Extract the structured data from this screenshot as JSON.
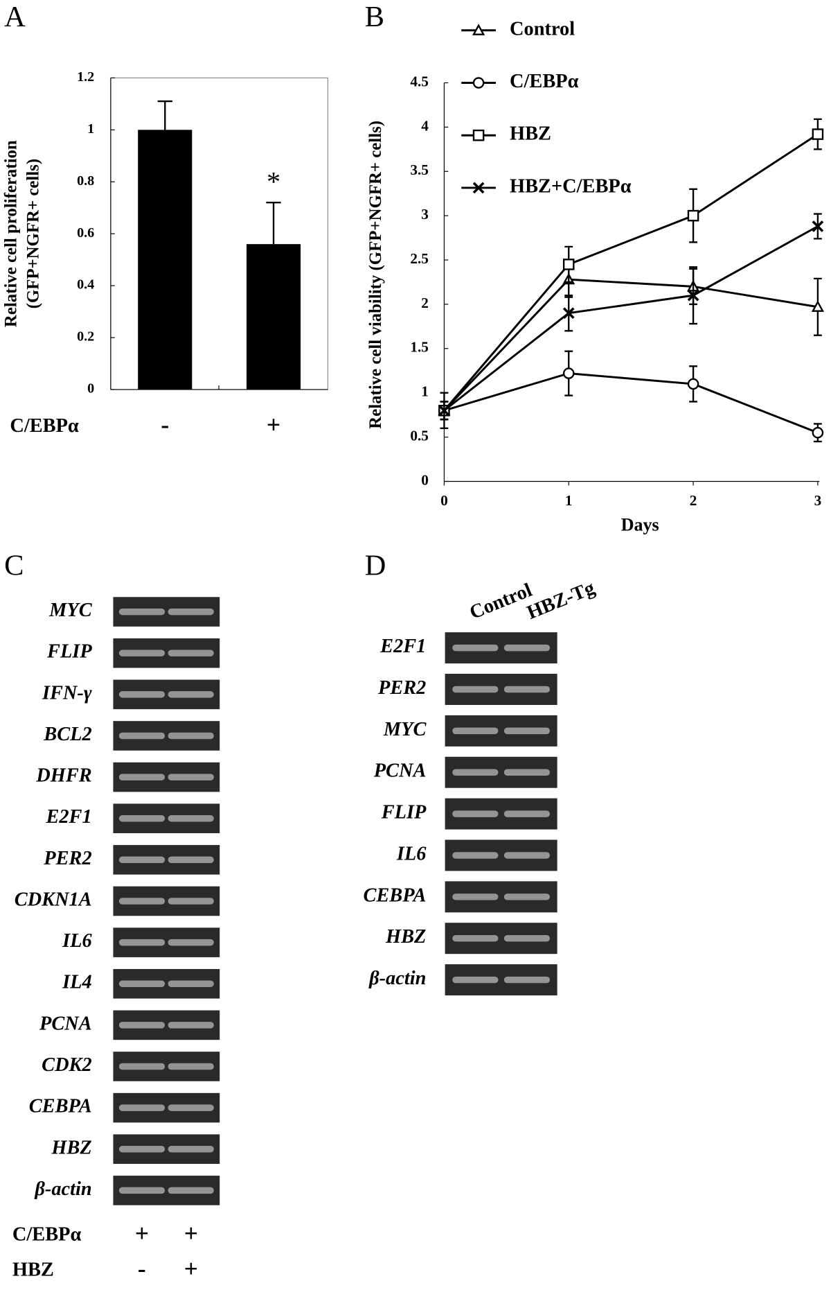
{
  "chart_data": [
    {
      "type": "bar",
      "panel": "A",
      "categories": [
        "-",
        "+"
      ],
      "values": [
        1,
        0.56
      ],
      "errors": [
        0.11,
        0.16
      ],
      "color": "#000000",
      "ylim": [
        0,
        1.2
      ],
      "yticks": [
        0,
        0.2,
        0.4,
        0.6,
        0.8,
        1,
        1.2
      ],
      "ylabel": [
        "Relative cell proliferation",
        "(GFP+NGFR+ cells)"
      ],
      "xlabel": "C/EBPα",
      "annotation": "*"
    },
    {
      "type": "line",
      "panel": "B",
      "x": [
        0,
        1,
        2,
        3
      ],
      "xlim": [
        0,
        3
      ],
      "xticks": [
        0,
        1,
        2,
        3
      ],
      "ylim": [
        0,
        4.5
      ],
      "yticks": [
        0,
        0.5,
        1,
        1.5,
        2,
        2.5,
        3,
        3.5,
        4,
        4.5
      ],
      "xlabel": "Days",
      "ylabel": "Relative cell viability (GFP+NGFR+ cells)",
      "series": [
        {
          "name": "Control",
          "color": "#000000",
          "marker": "triangle",
          "values": [
            0.8,
            2.28,
            2.2,
            1.97
          ],
          "errors": [
            0.2,
            0.2,
            0.2,
            0.32
          ]
        },
        {
          "name": "C/EBPα",
          "color": "#000000",
          "marker": "circle",
          "values": [
            0.8,
            1.22,
            1.1,
            0.55
          ],
          "errors": [
            0.1,
            0.25,
            0.2,
            0.1
          ]
        },
        {
          "name": "HBZ",
          "color": "#000000",
          "marker": "square",
          "values": [
            0.8,
            2.45,
            3.0,
            3.92
          ],
          "errors": [
            0.1,
            0.2,
            0.3,
            0.17
          ]
        },
        {
          "name": "HBZ+C/EBPα",
          "color": "#000000",
          "marker": "x",
          "values": [
            0.8,
            1.9,
            2.1,
            2.88
          ],
          "errors": [
            0.1,
            0.2,
            0.32,
            0.14
          ]
        }
      ]
    }
  ],
  "gel_c": {
    "panel": "C",
    "genes": [
      "MYC",
      "FLIP",
      "IFN-γ",
      "BCL2",
      "DHFR",
      "E2F1",
      "PER2",
      "CDKN1A",
      "IL6",
      "IL4",
      "PCNA",
      "CDK2",
      "CEBPA",
      "HBZ",
      "β-actin"
    ],
    "conditions": [
      {
        "name": "C/EBPα",
        "lanes": [
          "+",
          "+"
        ]
      },
      {
        "name": "HBZ",
        "lanes": [
          "-",
          "+"
        ]
      }
    ]
  },
  "gel_d": {
    "panel": "D",
    "lanes": [
      "Control",
      "HBZ-Tg"
    ],
    "genes": [
      "E2F1",
      "PER2",
      "MYC",
      "PCNA",
      "FLIP",
      "IL6",
      "CEBPA",
      "HBZ",
      "β-actin"
    ]
  }
}
